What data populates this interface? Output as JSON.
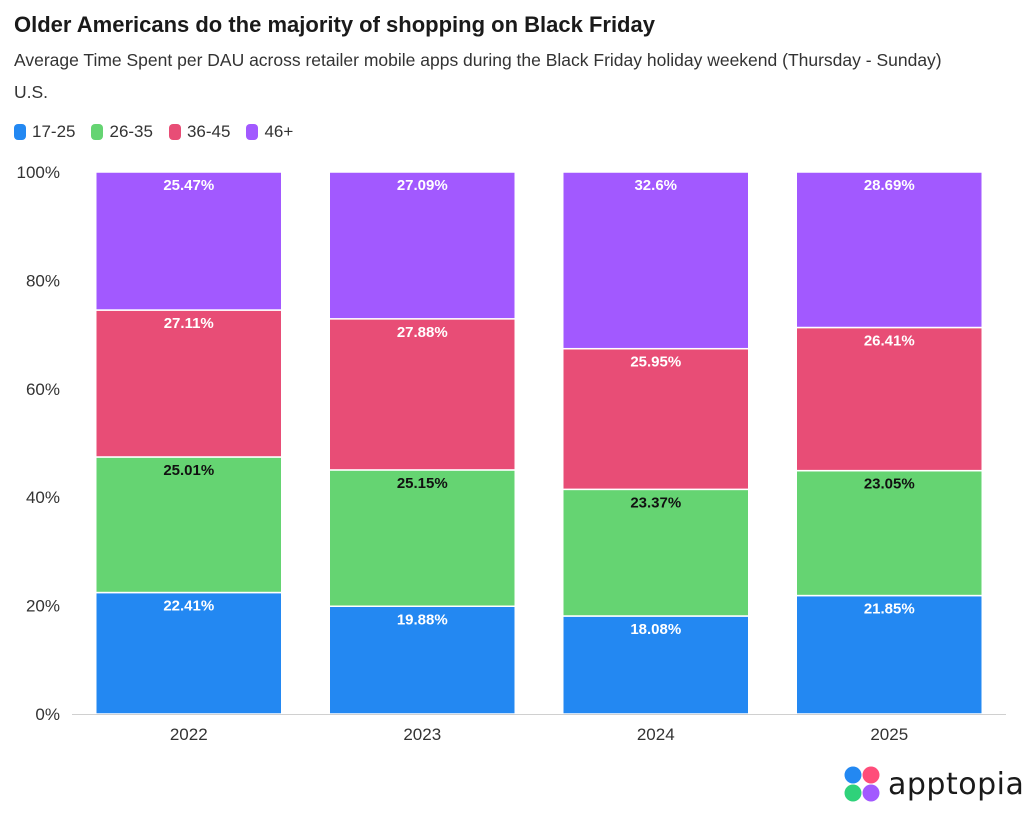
{
  "header": {
    "title": "Older Americans do the majority of shopping on Black Friday",
    "subtitle": "Average Time Spent per DAU across retailer mobile apps during the Black Friday holiday weekend (Thursday - Sunday)",
    "region": "U.S."
  },
  "legend": [
    {
      "label": "17-25",
      "color": "#2388f2"
    },
    {
      "label": "26-35",
      "color": "#65d472"
    },
    {
      "label": "36-45",
      "color": "#e84d76"
    },
    {
      "label": "46+",
      "color": "#a259ff"
    }
  ],
  "logo": {
    "text": "apptopia",
    "icon": "apptopia-logo-icon"
  },
  "chart_data": {
    "type": "bar",
    "stacked": true,
    "categories": [
      "2022",
      "2023",
      "2024",
      "2025"
    ],
    "series": [
      {
        "name": "17-25",
        "color": "#2388f2",
        "label_color": "#ffffff",
        "values": [
          22.41,
          19.88,
          18.08,
          21.85
        ]
      },
      {
        "name": "26-35",
        "color": "#65d472",
        "label_color": "#111111",
        "values": [
          25.01,
          25.15,
          23.37,
          23.05
        ]
      },
      {
        "name": "36-45",
        "color": "#e84d76",
        "label_color": "#ffffff",
        "values": [
          27.11,
          27.88,
          25.95,
          26.41
        ]
      },
      {
        "name": "46+",
        "color": "#a259ff",
        "label_color": "#ffffff",
        "values": [
          25.47,
          27.09,
          32.6,
          28.69
        ]
      }
    ],
    "data_labels": [
      [
        "22.41%",
        "19.88%",
        "18.08%",
        "21.85%"
      ],
      [
        "25.01%",
        "25.15%",
        "23.37%",
        "23.05%"
      ],
      [
        "27.11%",
        "27.88%",
        "25.95%",
        "26.41%"
      ],
      [
        "25.47%",
        "27.09%",
        "32.6%",
        "28.69%"
      ]
    ],
    "y_ticks": [
      "0%",
      "20%",
      "40%",
      "60%",
      "80%",
      "100%"
    ],
    "y_tick_values": [
      0,
      20,
      40,
      60,
      80,
      100
    ],
    "ylim": [
      0,
      100
    ],
    "grid": false,
    "legend_position": "top-left"
  }
}
